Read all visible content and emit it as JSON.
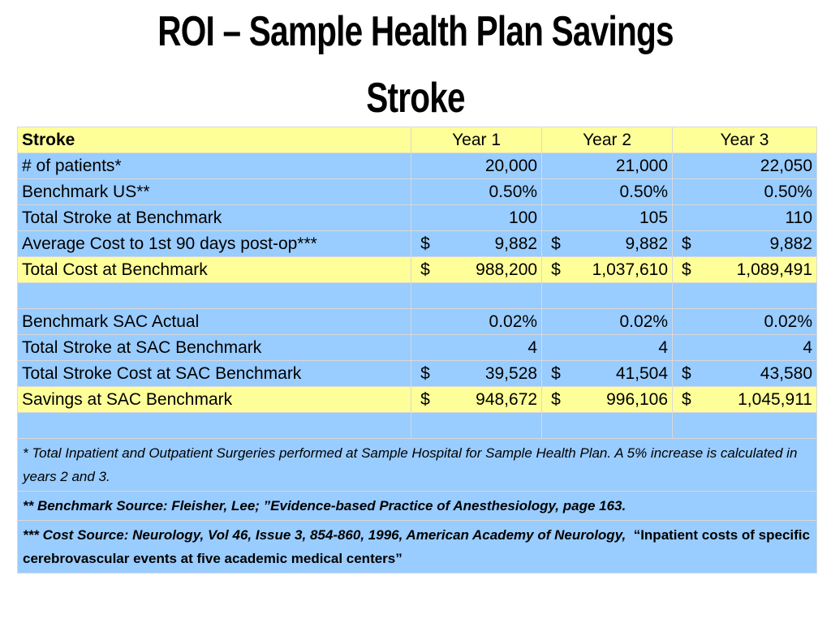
{
  "title": {
    "line1": "ROI – Sample Health Plan Savings",
    "line2": "Stroke"
  },
  "table": {
    "header": {
      "label": "Stroke",
      "years": [
        "Year 1",
        "Year 2",
        "Year 3"
      ]
    },
    "rows": {
      "patients": {
        "label": "# of patients*",
        "values": [
          "20,000",
          "21,000",
          "22,050"
        ]
      },
      "benchmark_us": {
        "label": "Benchmark US**",
        "values": [
          "0.50%",
          "0.50%",
          "0.50%"
        ]
      },
      "total_stroke_benchmark": {
        "label": "Total Stroke at Benchmark",
        "values": [
          "100",
          "105",
          "110"
        ]
      },
      "avg_cost": {
        "label": "Average Cost to 1st 90 days post-op***",
        "currency": "$",
        "values": [
          "9,882",
          "9,882",
          "9,882"
        ]
      },
      "total_cost_benchmark": {
        "label": "Total Cost at Benchmark",
        "currency": "$",
        "values": [
          "988,200",
          "1,037,610",
          "1,089,491"
        ]
      },
      "sac_actual": {
        "label": "Benchmark SAC Actual",
        "values": [
          "0.02%",
          "0.02%",
          "0.02%"
        ]
      },
      "total_stroke_sac": {
        "label": "Total Stroke at SAC Benchmark",
        "values": [
          "4",
          "4",
          "4"
        ]
      },
      "total_stroke_cost_sac": {
        "label": "Total Stroke Cost at SAC Benchmark",
        "currency": "$",
        "values": [
          "39,528",
          "41,504",
          "43,580"
        ]
      },
      "savings_sac": {
        "label": "Savings at SAC Benchmark",
        "currency": "$",
        "values": [
          "948,672",
          "996,106",
          "1,045,911"
        ]
      }
    },
    "notes": {
      "note1": "* Total Inpatient and Outpatient Surgeries performed at Sample Hospital for Sample Health Plan.  A 5% increase is calculated in years 2 and 3.",
      "note2": "** Benchmark Source: Fleisher, Lee; ”Evidence-based Practice of Anesthesiology, page 163.",
      "note3_italic": "*** Cost Source: Neurology, Vol 46, Issue 3, 854-860, 1996, American Academy of Neurology,",
      "note3_plain": "“Inpatient costs of specific cerebrovascular events at five academic medical centers”"
    }
  },
  "colors": {
    "yellow_row": "#ffff99",
    "blue_row": "#99ccff"
  }
}
